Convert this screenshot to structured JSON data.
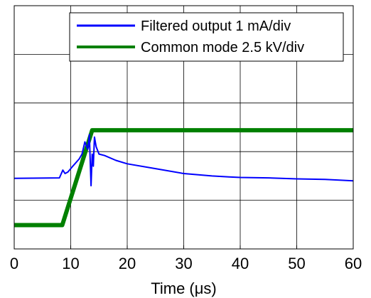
{
  "chart_data": {
    "type": "line",
    "title": "",
    "xlabel": "Time (μs)",
    "ylabel": "",
    "xlim": [
      0,
      60
    ],
    "ylim": [
      0,
      5
    ],
    "x_ticks": [
      0,
      10,
      20,
      30,
      40,
      50,
      60
    ],
    "y_gridlines": [
      1,
      2,
      3,
      4
    ],
    "grid": true,
    "legend": {
      "placement": "top-right"
    },
    "series": [
      {
        "name": "Filtered output 1 mA/div",
        "color": "#0000ff",
        "x": [
          0,
          8,
          8.6,
          9.0,
          9.5,
          10.5,
          11.5,
          12,
          12.5,
          13,
          13.3,
          13.6,
          13.8,
          14.0,
          14.2,
          14.5,
          15,
          16,
          18,
          20,
          25,
          30,
          35,
          38,
          40,
          45,
          50,
          55,
          60
        ],
        "y": [
          1.45,
          1.46,
          1.62,
          1.55,
          1.58,
          1.72,
          1.85,
          1.95,
          2.2,
          2.05,
          2.35,
          1.3,
          1.95,
          1.7,
          2.3,
          2.1,
          1.95,
          1.92,
          1.82,
          1.75,
          1.65,
          1.55,
          1.5,
          1.48,
          1.47,
          1.46,
          1.44,
          1.43,
          1.4
        ]
      },
      {
        "name": "Common mode 2.5 kV/div",
        "color": "#008000",
        "x": [
          0,
          8.5,
          13.8,
          14.5,
          60
        ],
        "y": [
          0.49,
          0.49,
          2.44,
          2.44,
          2.44
        ]
      }
    ]
  }
}
